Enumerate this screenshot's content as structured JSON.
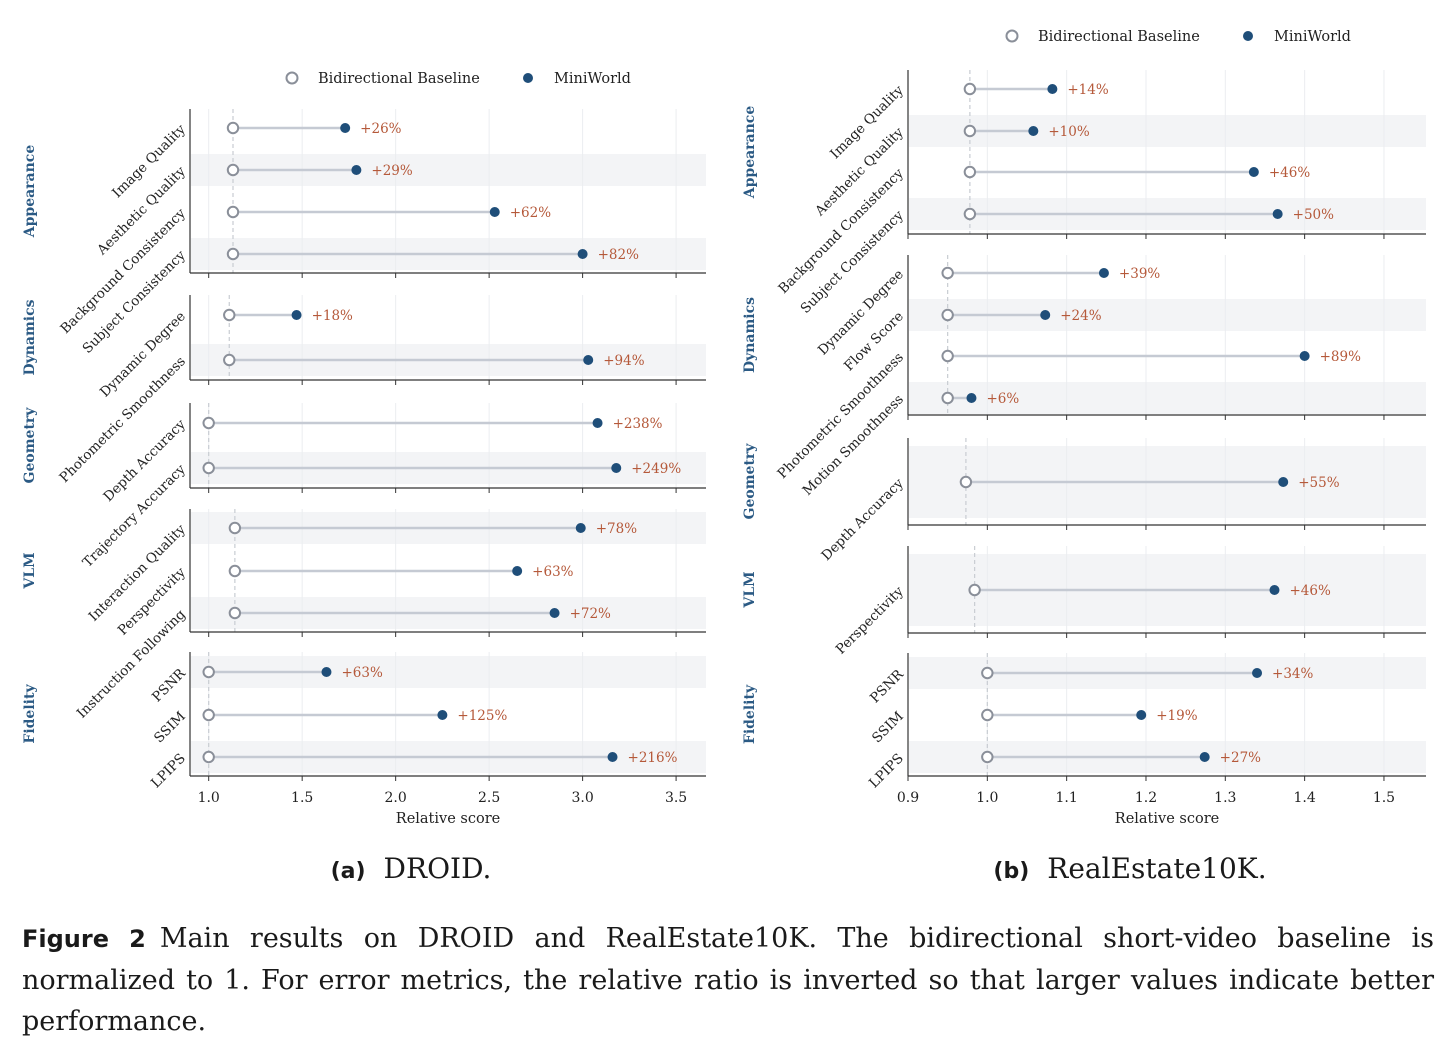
{
  "chart_data": [
    {
      "type": "scatter",
      "subtype": "dumbbell",
      "panel_label": "(a)",
      "title": "DROID.",
      "xlabel": "Relative score",
      "xlim": [
        0.9,
        3.66
      ],
      "xticks": [
        1.0,
        1.5,
        2.0,
        2.5,
        3.0,
        3.5
      ],
      "xtick_labels": [
        "1.0",
        "1.5",
        "2.0",
        "2.5",
        "3.0",
        "3.5"
      ],
      "grid": "vertical",
      "legend": {
        "placement": "top-center",
        "entries": [
          "Bidirectional Baseline",
          "MiniWorld"
        ]
      },
      "series_names": [
        "Bidirectional Baseline",
        "MiniWorld"
      ],
      "groups": [
        {
          "name": "Appearance",
          "metrics": [
            {
              "label": "Image Quality",
              "baseline": 1.13,
              "miniworld": 1.73,
              "annotation": "+26%"
            },
            {
              "label": "Aesthetic Quality",
              "baseline": 1.13,
              "miniworld": 1.79,
              "annotation": "+29%"
            },
            {
              "label": "Background Consistency",
              "baseline": 1.13,
              "miniworld": 2.53,
              "annotation": "+62%"
            },
            {
              "label": "Subject Consistency",
              "baseline": 1.13,
              "miniworld": 3.0,
              "annotation": "+82%"
            }
          ]
        },
        {
          "name": "Dynamics",
          "metrics": [
            {
              "label": "Dynamic Degree",
              "baseline": 1.11,
              "miniworld": 1.47,
              "annotation": "+18%"
            },
            {
              "label": "Photometric Smoothness",
              "baseline": 1.11,
              "miniworld": 3.03,
              "annotation": "+94%"
            }
          ]
        },
        {
          "name": "Geometry",
          "metrics": [
            {
              "label": "Depth Accuracy",
              "baseline": 1.0,
              "miniworld": 3.08,
              "annotation": "+238%"
            },
            {
              "label": "Trajectory Accuracy",
              "baseline": 1.0,
              "miniworld": 3.18,
              "annotation": "+249%"
            }
          ]
        },
        {
          "name": "VLM",
          "metrics": [
            {
              "label": "Interaction Quality",
              "baseline": 1.14,
              "miniworld": 2.99,
              "annotation": "+78%"
            },
            {
              "label": "Perspectivity",
              "baseline": 1.14,
              "miniworld": 2.65,
              "annotation": "+63%"
            },
            {
              "label": "Instruction Following",
              "baseline": 1.14,
              "miniworld": 2.85,
              "annotation": "+72%"
            }
          ]
        },
        {
          "name": "Fidelity",
          "metrics": [
            {
              "label": "PSNR",
              "baseline": 1.0,
              "miniworld": 1.63,
              "annotation": "+63%"
            },
            {
              "label": "SSIM",
              "baseline": 1.0,
              "miniworld": 2.25,
              "annotation": "+125%"
            },
            {
              "label": "LPIPS",
              "baseline": 1.0,
              "miniworld": 3.16,
              "annotation": "+216%"
            }
          ]
        }
      ]
    },
    {
      "type": "scatter",
      "subtype": "dumbbell",
      "panel_label": "(b)",
      "title": "RealEstate10K.",
      "xlabel": "Relative score",
      "xlim": [
        0.9,
        1.553
      ],
      "xticks": [
        0.9,
        1.0,
        1.1,
        1.2,
        1.3,
        1.4,
        1.5
      ],
      "xtick_labels": [
        "0.9",
        "1.0",
        "1.1",
        "1.2",
        "1.3",
        "1.4",
        "1.5"
      ],
      "grid": "vertical",
      "legend": {
        "placement": "top-right",
        "entries": [
          "Bidirectional Baseline",
          "MiniWorld"
        ]
      },
      "series_names": [
        "Bidirectional Baseline",
        "MiniWorld"
      ],
      "groups": [
        {
          "name": "Appearance",
          "metrics": [
            {
              "label": "Image Quality",
              "baseline": 0.978,
              "miniworld": 1.082,
              "annotation": "+14%"
            },
            {
              "label": "Aesthetic Quality",
              "baseline": 0.978,
              "miniworld": 1.058,
              "annotation": "+10%"
            },
            {
              "label": "Background Consistency",
              "baseline": 0.978,
              "miniworld": 1.336,
              "annotation": "+46%"
            },
            {
              "label": "Subject Consistency",
              "baseline": 0.978,
              "miniworld": 1.366,
              "annotation": "+50%"
            }
          ]
        },
        {
          "name": "Dynamics",
          "metrics": [
            {
              "label": "Dynamic Degree",
              "baseline": 0.95,
              "miniworld": 1.147,
              "annotation": "+39%"
            },
            {
              "label": "Flow Score",
              "baseline": 0.95,
              "miniworld": 1.073,
              "annotation": "+24%"
            },
            {
              "label": "Photometric Smoothness",
              "baseline": 0.95,
              "miniworld": 1.4,
              "annotation": "+89%"
            },
            {
              "label": "Motion Smoothness",
              "baseline": 0.95,
              "miniworld": 0.98,
              "annotation": "+6%"
            }
          ]
        },
        {
          "name": "Geometry",
          "metrics": [
            {
              "label": "Depth Accuracy",
              "baseline": 0.973,
              "miniworld": 1.373,
              "annotation": "+55%"
            }
          ]
        },
        {
          "name": "VLM",
          "metrics": [
            {
              "label": "Perspectivity",
              "baseline": 0.984,
              "miniworld": 1.362,
              "annotation": "+46%"
            }
          ]
        },
        {
          "name": "Fidelity",
          "metrics": [
            {
              "label": "PSNR",
              "baseline": 1.0,
              "miniworld": 1.34,
              "annotation": "+34%"
            },
            {
              "label": "SSIM",
              "baseline": 1.0,
              "miniworld": 1.194,
              "annotation": "+19%"
            },
            {
              "label": "LPIPS",
              "baseline": 1.0,
              "miniworld": 1.274,
              "annotation": "+27%"
            }
          ]
        }
      ]
    }
  ],
  "caption": {
    "label": "Figure 2",
    "text": "Main results on DROID and RealEstate10K. The bidirectional short-video baseline is normalized to 1. For error metrics, the relative ratio is inverted so that larger values indicate better performance."
  },
  "colors": {
    "miniworld": "#1f4e79",
    "baseline_stroke": "#8a8f99",
    "connector": "#c5cad3",
    "annotation": "#b5593a",
    "group_label": "#2b5a84",
    "band": "#f3f4f6"
  }
}
